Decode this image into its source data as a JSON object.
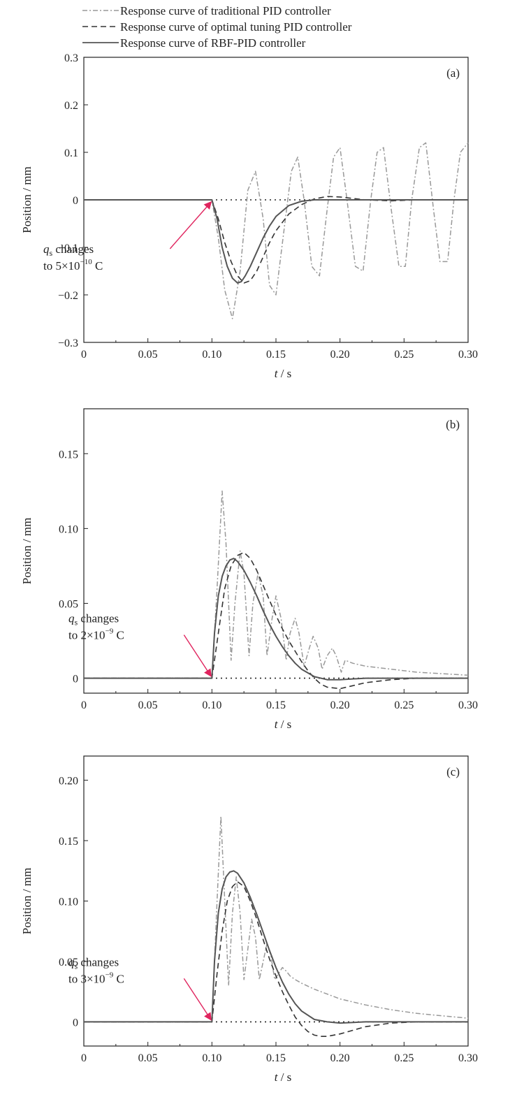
{
  "legend": [
    {
      "label": "Response curve of traditional PID controller",
      "style": "dashdot",
      "color": "#999999"
    },
    {
      "label": "Response curve of optimal tuning PID controller",
      "style": "dashed",
      "color": "#333333"
    },
    {
      "label": "Response curve of RBF-PID controller",
      "style": "solid",
      "color": "#555555"
    }
  ],
  "colors": {
    "annotation_arrow": "#e0245e",
    "highlight": "#c8c800",
    "axis": "#222222"
  },
  "chart_data": [
    {
      "type": "line",
      "panel": "(a)",
      "xlabel": "t / s",
      "ylabel": "Position / mm",
      "xlim": [
        0,
        0.3
      ],
      "ylim": [
        -0.3,
        0.3
      ],
      "xticks": [
        "0",
        "0.05",
        "0.10",
        "0.15",
        "0.20",
        "0.25",
        "0.30"
      ],
      "yticks": [
        "−0.3",
        "−0.2",
        "−0.1",
        "0",
        "0.1",
        "0.2",
        "0.3"
      ],
      "annotation": {
        "var": "q",
        "sub": "s",
        "line1": " changes",
        "line2": "to 5×10",
        "exp": "−10",
        "unit": " C",
        "x": 0.1,
        "y": 0
      },
      "series": [
        {
          "name": "Response curve of traditional PID controller",
          "x": [
            0.0,
            0.1,
            0.105,
            0.11,
            0.116,
            0.122,
            0.128,
            0.134,
            0.14,
            0.145,
            0.15,
            0.156,
            0.162,
            0.167,
            0.172,
            0.178,
            0.184,
            0.19,
            0.195,
            0.2,
            0.205,
            0.212,
            0.218,
            0.224,
            0.229,
            0.234,
            0.24,
            0.246,
            0.251,
            0.256,
            0.262,
            0.267,
            0.273,
            0.278,
            0.284,
            0.289,
            0.294,
            0.3
          ],
          "y": [
            0.0,
            0.0,
            -0.08,
            -0.19,
            -0.25,
            -0.15,
            0.02,
            0.06,
            -0.04,
            -0.18,
            -0.2,
            -0.07,
            0.06,
            0.09,
            0.0,
            -0.14,
            -0.16,
            -0.02,
            0.09,
            0.11,
            0.01,
            -0.14,
            -0.15,
            0.0,
            0.1,
            0.11,
            -0.02,
            -0.14,
            -0.14,
            0.0,
            0.11,
            0.12,
            -0.02,
            -0.13,
            -0.13,
            0.0,
            0.1,
            0.12
          ]
        },
        {
          "name": "Response curve of optimal tuning PID controller",
          "x": [
            0.0,
            0.1,
            0.105,
            0.11,
            0.115,
            0.12,
            0.125,
            0.13,
            0.135,
            0.14,
            0.145,
            0.15,
            0.16,
            0.17,
            0.18,
            0.19,
            0.2,
            0.21,
            0.22,
            0.24,
            0.26,
            0.3
          ],
          "y": [
            0.0,
            0.0,
            -0.04,
            -0.09,
            -0.13,
            -0.16,
            -0.175,
            -0.17,
            -0.15,
            -0.12,
            -0.09,
            -0.065,
            -0.03,
            -0.01,
            0.002,
            0.007,
            0.006,
            0.003,
            0.0,
            -0.002,
            0.0,
            0.0
          ]
        },
        {
          "name": "Response curve of RBF-PID controller",
          "x": [
            0.0,
            0.1,
            0.104,
            0.108,
            0.112,
            0.116,
            0.12,
            0.123,
            0.126,
            0.13,
            0.135,
            0.14,
            0.145,
            0.15,
            0.16,
            0.17,
            0.18,
            0.19,
            0.2,
            0.22,
            0.25,
            0.3
          ],
          "y": [
            0.0,
            0.0,
            -0.04,
            -0.1,
            -0.14,
            -0.165,
            -0.175,
            -0.172,
            -0.16,
            -0.14,
            -0.11,
            -0.08,
            -0.055,
            -0.035,
            -0.012,
            -0.003,
            0.0,
            0.0,
            0.0,
            0.0,
            0.0,
            0.0
          ]
        }
      ]
    },
    {
      "type": "line",
      "panel": "(b)",
      "xlabel": "t / s",
      "ylabel": "Position / mm",
      "xlim": [
        0,
        0.3
      ],
      "ylim": [
        -0.01,
        0.18
      ],
      "xticks": [
        "0",
        "0.05",
        "0.10",
        "0.15",
        "0.20",
        "0.25",
        "0.30"
      ],
      "yticks": [
        "0",
        "0.05",
        "0.10",
        "0.15"
      ],
      "annotation": {
        "var": "q",
        "sub": "s",
        "line1": " changes",
        "line2": "to 2×10",
        "exp": "−9",
        "unit": " C",
        "x": 0.1,
        "y": 0
      },
      "series": [
        {
          "name": "Response curve of traditional PID controller",
          "x": [
            0.0,
            0.1,
            0.104,
            0.108,
            0.111,
            0.115,
            0.118,
            0.122,
            0.125,
            0.129,
            0.132,
            0.136,
            0.14,
            0.143,
            0.147,
            0.15,
            0.154,
            0.158,
            0.161,
            0.165,
            0.168,
            0.172,
            0.176,
            0.179,
            0.183,
            0.186,
            0.19,
            0.194,
            0.197,
            0.201,
            0.204,
            0.21,
            0.22,
            0.24,
            0.26,
            0.28,
            0.3
          ],
          "y": [
            0.0,
            0.0,
            0.06,
            0.125,
            0.09,
            0.012,
            0.05,
            0.085,
            0.07,
            0.015,
            0.05,
            0.07,
            0.055,
            0.015,
            0.04,
            0.055,
            0.04,
            0.012,
            0.03,
            0.04,
            0.03,
            0.008,
            0.02,
            0.028,
            0.02,
            0.006,
            0.015,
            0.02,
            0.015,
            0.004,
            0.012,
            0.01,
            0.008,
            0.006,
            0.004,
            0.003,
            0.002
          ]
        },
        {
          "name": "Response curve of optimal tuning PID controller",
          "x": [
            0.0,
            0.1,
            0.105,
            0.11,
            0.115,
            0.12,
            0.125,
            0.13,
            0.135,
            0.14,
            0.145,
            0.15,
            0.155,
            0.16,
            0.165,
            0.17,
            0.175,
            0.18,
            0.185,
            0.19,
            0.2,
            0.21,
            0.22,
            0.24,
            0.26,
            0.3
          ],
          "y": [
            0.0,
            0.0,
            0.03,
            0.06,
            0.075,
            0.082,
            0.084,
            0.08,
            0.072,
            0.062,
            0.052,
            0.042,
            0.033,
            0.025,
            0.018,
            0.011,
            0.005,
            0.0,
            -0.004,
            -0.006,
            -0.007,
            -0.005,
            -0.003,
            -0.001,
            0.0,
            0.0
          ]
        },
        {
          "name": "Response curve of RBF-PID controller",
          "x": [
            0.0,
            0.1,
            0.102,
            0.105,
            0.108,
            0.111,
            0.114,
            0.117,
            0.12,
            0.125,
            0.13,
            0.135,
            0.14,
            0.145,
            0.15,
            0.155,
            0.16,
            0.165,
            0.17,
            0.18,
            0.19,
            0.2,
            0.22,
            0.25,
            0.3
          ],
          "y": [
            0.0,
            0.0,
            0.03,
            0.055,
            0.068,
            0.075,
            0.079,
            0.08,
            0.078,
            0.072,
            0.064,
            0.055,
            0.045,
            0.036,
            0.028,
            0.021,
            0.015,
            0.01,
            0.006,
            0.001,
            -0.001,
            -0.001,
            0.0,
            0.0,
            0.0
          ]
        }
      ]
    },
    {
      "type": "line",
      "panel": "(c)",
      "xlabel": "t / s",
      "ylabel": "Position / mm",
      "xlim": [
        0,
        0.3
      ],
      "ylim": [
        -0.02,
        0.22
      ],
      "xticks": [
        "0",
        "0.05",
        "0.10",
        "0.15",
        "0.20",
        "0.25",
        "0.30"
      ],
      "yticks": [
        "0",
        "0.05",
        "0.10",
        "0.15",
        "0.20"
      ],
      "annotation": {
        "var": "q",
        "sub": "s",
        "line1": " changes",
        "line2": "to 3×10",
        "exp": "−9",
        "unit": " C",
        "x": 0.1,
        "y": 0
      },
      "series": [
        {
          "name": "Response curve of traditional PID controller",
          "x": [
            0.0,
            0.1,
            0.104,
            0.107,
            0.11,
            0.113,
            0.116,
            0.119,
            0.122,
            0.125,
            0.128,
            0.131,
            0.134,
            0.137,
            0.14,
            0.143,
            0.146,
            0.149,
            0.152,
            0.155,
            0.158,
            0.161,
            0.165,
            0.17,
            0.18,
            0.19,
            0.2,
            0.22,
            0.24,
            0.26,
            0.28,
            0.3
          ],
          "y": [
            0.0,
            0.0,
            0.1,
            0.17,
            0.1,
            0.03,
            0.09,
            0.12,
            0.09,
            0.035,
            0.06,
            0.085,
            0.07,
            0.035,
            0.05,
            0.065,
            0.055,
            0.035,
            0.04,
            0.045,
            0.042,
            0.038,
            0.035,
            0.032,
            0.027,
            0.023,
            0.019,
            0.014,
            0.01,
            0.007,
            0.005,
            0.003
          ]
        },
        {
          "name": "Response curve of optimal tuning PID controller",
          "x": [
            0.0,
            0.1,
            0.104,
            0.108,
            0.112,
            0.116,
            0.12,
            0.125,
            0.13,
            0.135,
            0.14,
            0.145,
            0.15,
            0.155,
            0.16,
            0.165,
            0.17,
            0.175,
            0.18,
            0.185,
            0.19,
            0.2,
            0.21,
            0.22,
            0.24,
            0.26,
            0.3
          ],
          "y": [
            0.0,
            0.0,
            0.04,
            0.075,
            0.1,
            0.112,
            0.116,
            0.112,
            0.1,
            0.085,
            0.068,
            0.052,
            0.038,
            0.025,
            0.014,
            0.004,
            -0.003,
            -0.008,
            -0.011,
            -0.012,
            -0.012,
            -0.01,
            -0.007,
            -0.004,
            -0.001,
            0.0,
            0.0
          ]
        },
        {
          "name": "Response curve of RBF-PID controller",
          "x": [
            0.0,
            0.1,
            0.102,
            0.105,
            0.108,
            0.111,
            0.114,
            0.117,
            0.12,
            0.125,
            0.13,
            0.135,
            0.14,
            0.145,
            0.15,
            0.155,
            0.16,
            0.165,
            0.17,
            0.18,
            0.19,
            0.2,
            0.22,
            0.25,
            0.3
          ],
          "y": [
            0.0,
            0.0,
            0.05,
            0.09,
            0.11,
            0.12,
            0.124,
            0.125,
            0.123,
            0.115,
            0.103,
            0.089,
            0.074,
            0.059,
            0.045,
            0.033,
            0.023,
            0.015,
            0.009,
            0.002,
            0.0,
            -0.001,
            0.0,
            0.0,
            0.0
          ]
        }
      ]
    }
  ]
}
